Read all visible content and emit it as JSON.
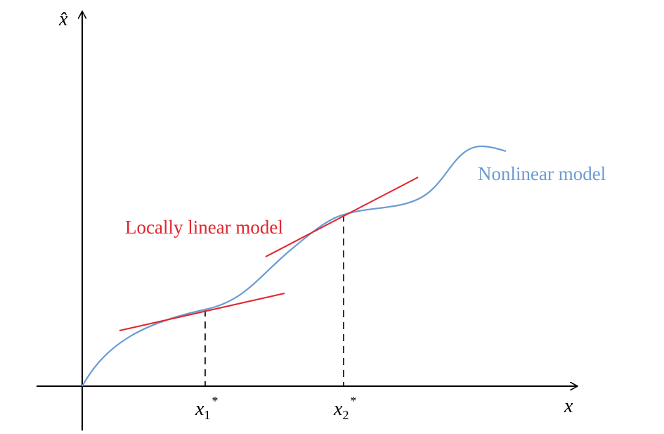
{
  "axes": {
    "y_label": "x̂",
    "x_label": "x"
  },
  "points": [
    {
      "base": "x",
      "sub": "1",
      "sup": "*"
    },
    {
      "base": "x",
      "sub": "2",
      "sup": "*"
    }
  ],
  "labels": {
    "local": "Locally linear model",
    "nonlinear": "Nonlinear model"
  }
}
